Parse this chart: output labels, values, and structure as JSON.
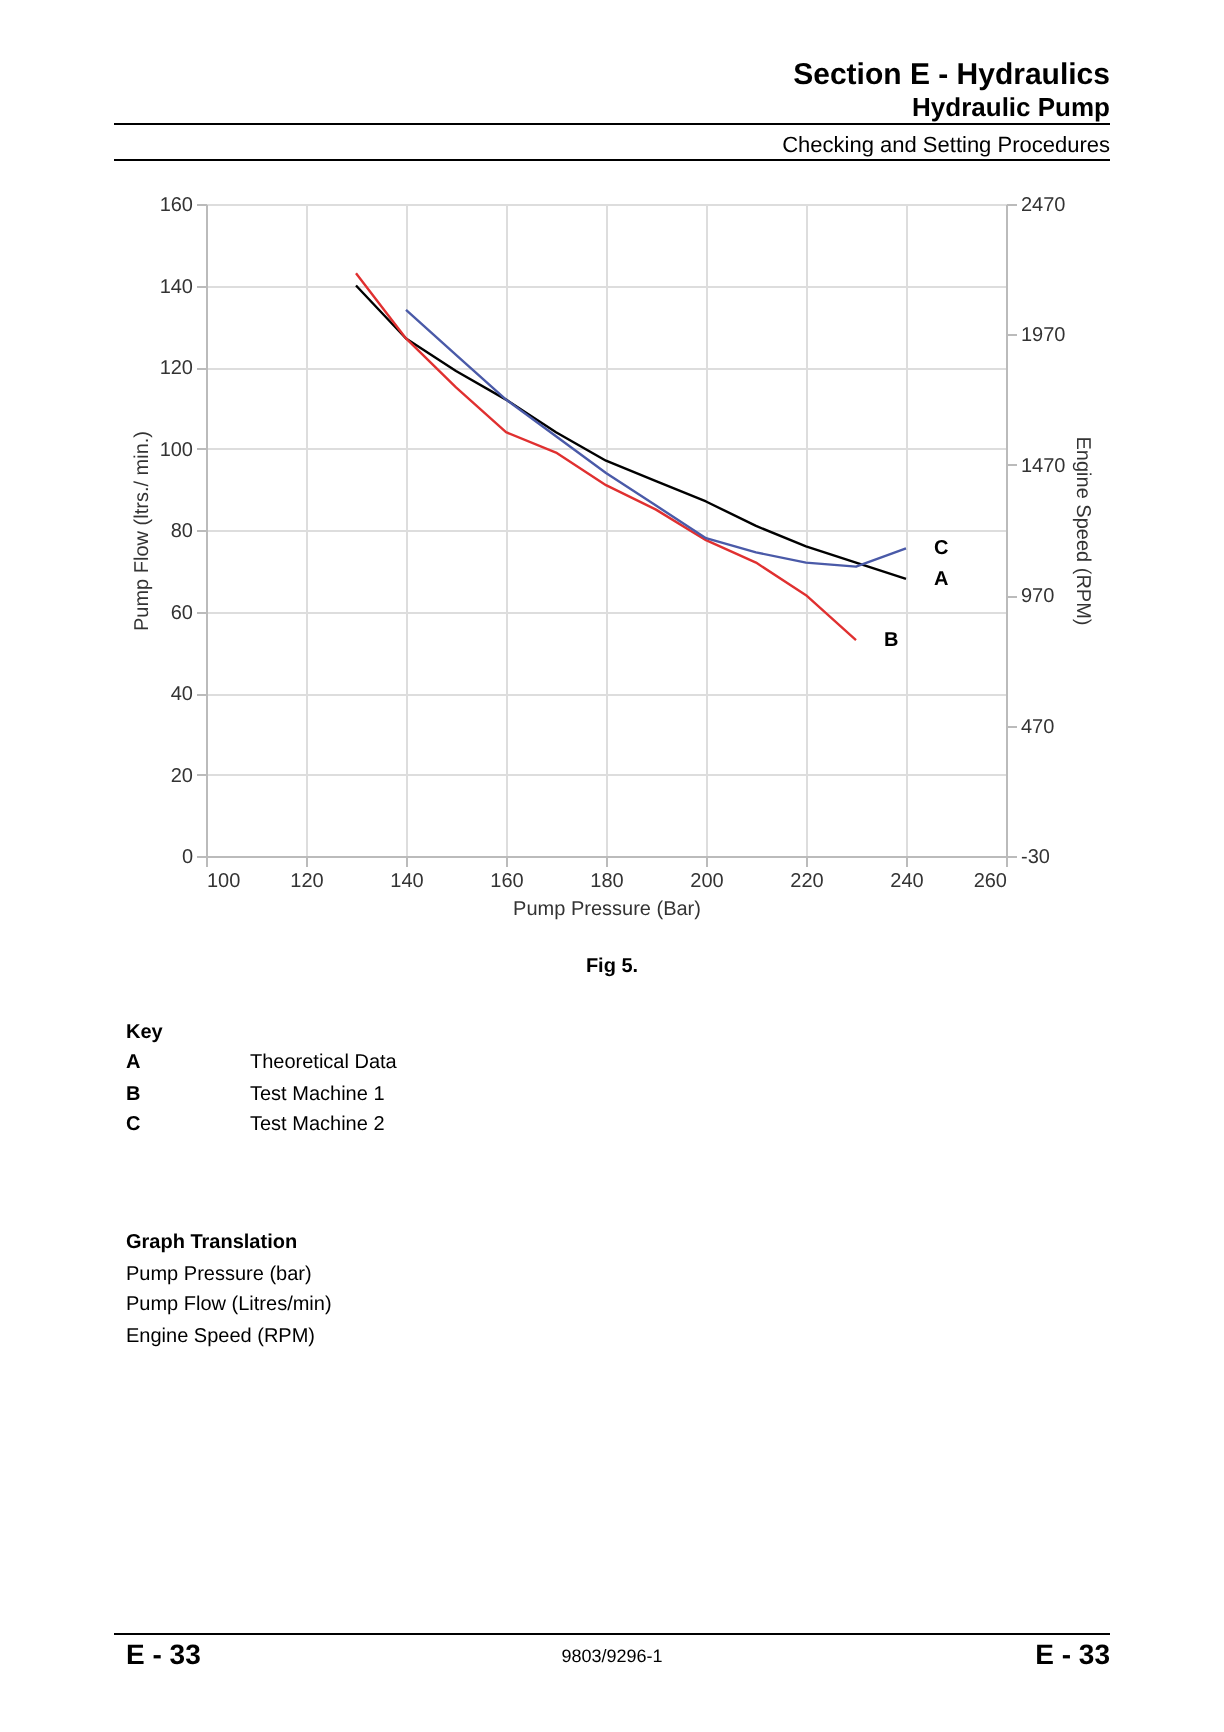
{
  "chart_data": {
    "type": "line",
    "title": "Section E - Hydraulics",
    "subtitle": "Hydraulic Pump",
    "xlabel": "Pump Pressure (Bar)",
    "ylabel": "Pump Flow (ltrs./ min.)",
    "y2label": "Engine Speed (RPM)",
    "xlim": [
      100,
      260
    ],
    "xticks": [
      100,
      120,
      140,
      160,
      180,
      200,
      220,
      240,
      260
    ],
    "ylim": [
      0,
      160
    ],
    "yticks": [
      0,
      20,
      40,
      60,
      80,
      100,
      120,
      140,
      160
    ],
    "y2lim": [
      -30,
      2470
    ],
    "y2ticks": [
      -30,
      470,
      970,
      1470,
      1970,
      2470
    ],
    "grid": true,
    "legend": false,
    "line_style": "solid",
    "series": [
      {
        "name": "A",
        "color": "#000000",
        "x": [
          130,
          140,
          150,
          160,
          170,
          180,
          190,
          200,
          210,
          220,
          230,
          240
        ],
        "values": [
          140,
          127,
          119,
          112,
          104,
          97,
          92,
          87,
          81,
          76,
          72,
          68
        ]
      },
      {
        "name": "B",
        "color": "#e03030",
        "x": [
          130,
          140,
          150,
          160,
          170,
          180,
          190,
          200,
          210,
          220,
          230
        ],
        "values": [
          143,
          127,
          115,
          104,
          99,
          91,
          85,
          77.5,
          72,
          64,
          53
        ]
      },
      {
        "name": "C",
        "color": "#4a5aa8",
        "x": [
          140,
          150,
          160,
          170,
          180,
          190,
          200,
          210,
          220,
          230,
          240
        ],
        "values": [
          134,
          123,
          112,
          103,
          94,
          86,
          78,
          74.5,
          72,
          71,
          75.5
        ]
      }
    ],
    "annotations": [
      "Checking and Setting Procedures",
      "Fig 5.",
      "Key",
      "A",
      "Theoretical Data",
      "B",
      "Test Machine 1",
      "C",
      "Test Machine 2",
      "Graph Translation",
      "Pump Pressure (bar)",
      "Pump Flow (Litres/min)",
      "Engine Speed (RPM)",
      "E - 33",
      "9803/9296-1",
      "E - 33"
    ]
  }
}
